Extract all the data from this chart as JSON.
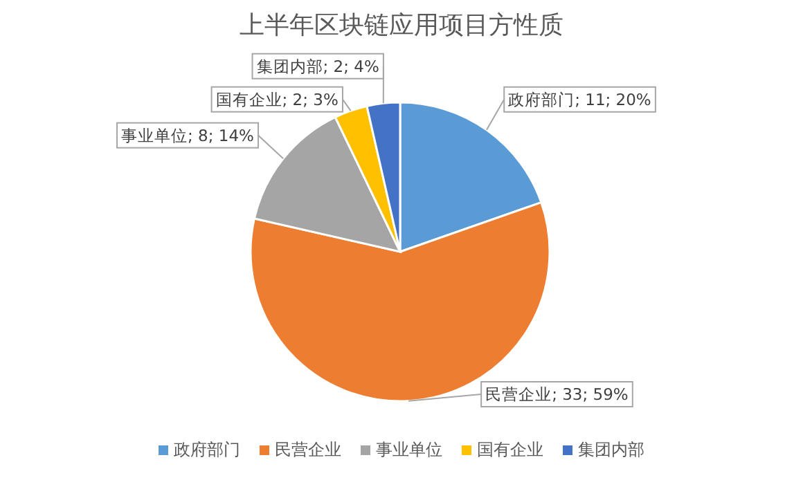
{
  "chart_data": {
    "type": "pie",
    "title": "上半年区块链应用项目方性质",
    "categories": [
      "政府部门",
      "民营企业",
      "事业单位",
      "国有企业",
      "集团内部"
    ],
    "values": [
      11,
      33,
      8,
      2,
      2
    ],
    "value_labels": [
      "政府部门; 11; 20%",
      "民营企业; 33; 59%",
      "事业单位; 8; 14%",
      "国有企业; 2; 3%",
      "集团内部; 2; 4%"
    ],
    "colors": [
      "#5b9bd5",
      "#ed7d31",
      "#a5a5a5",
      "#ffc000",
      "#4472c4"
    ],
    "legend": "bottom"
  }
}
